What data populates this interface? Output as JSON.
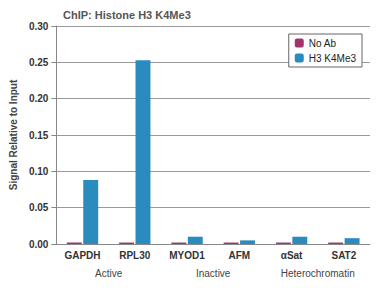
{
  "chart_data": {
    "type": "bar",
    "title": "ChIP: Histone H3 K4Me3",
    "y_label": "Signal Relative to Input",
    "categories": [
      "GAPDH",
      "RPL30",
      "MYOD1",
      "AFM",
      "αSat",
      "SAT2"
    ],
    "series": [
      {
        "name": "No Ab",
        "color": "#a0336a",
        "values": [
          0.002,
          0.002,
          0.002,
          0.002,
          0.002,
          0.002
        ]
      },
      {
        "name": "H3 K4Me3",
        "color": "#2a8bbf",
        "values": [
          0.088,
          0.253,
          0.01,
          0.005,
          0.01,
          0.008
        ]
      }
    ],
    "annotations": [
      {
        "text": "Active",
        "categories": [
          "GAPDH",
          "RPL30"
        ]
      },
      {
        "text": "Inactive",
        "categories": [
          "MYOD1",
          "AFM"
        ]
      },
      {
        "text": "Heterochromatin",
        "categories": [
          "αSat",
          "SAT2"
        ]
      }
    ],
    "ylim": [
      0,
      0.3
    ],
    "yticks": [
      {
        "value": 0,
        "label": "0.00"
      },
      {
        "value": 0.05,
        "label": "0.05"
      },
      {
        "value": 0.1,
        "label": "0.10"
      },
      {
        "value": 0.15,
        "label": "0.15"
      },
      {
        "value": 0.2,
        "label": "0.20"
      },
      {
        "value": 0.25,
        "label": "0.25"
      },
      {
        "value": 0.3,
        "label": "0.30"
      }
    ],
    "grid": true,
    "legend": "top-right"
  }
}
